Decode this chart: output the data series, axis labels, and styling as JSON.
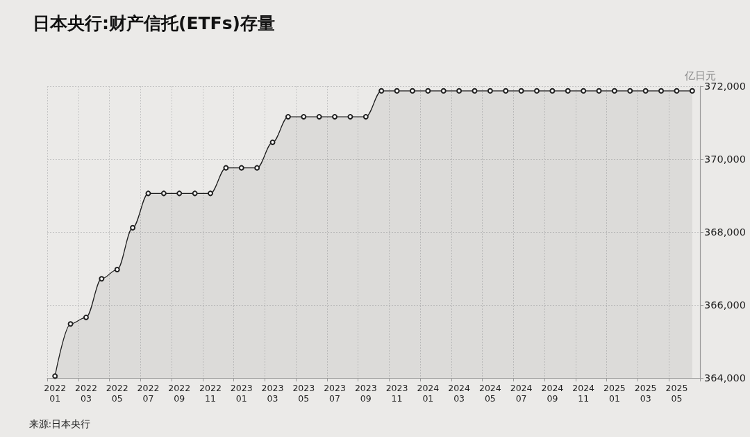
{
  "chart_data": {
    "type": "area",
    "title": "日本央行:财产信托(ETFs)存量",
    "ylabel": "亿日元",
    "annotations": [
      "来源:日本央行"
    ],
    "categories": [
      "2022\n01",
      null,
      "2022\n03",
      null,
      "2022\n05",
      null,
      "2022\n07",
      null,
      "2022\n09",
      null,
      "2022\n11",
      null,
      "2023\n01",
      null,
      "2023\n03",
      null,
      "2023\n05",
      null,
      "2023\n07",
      null,
      "2023\n09",
      null,
      "2023\n11",
      null,
      "2024\n01",
      null,
      "2024\n03",
      null,
      "2024\n05",
      null,
      "2024\n07",
      null,
      "2024\n09",
      null,
      "2024\n11",
      null,
      "2025\n01",
      null,
      "2025\n03",
      null,
      "2025\n05",
      null
    ],
    "values": [
      364050,
      365480,
      365660,
      366720,
      366970,
      368120,
      369060,
      369060,
      369060,
      369060,
      369060,
      369760,
      369760,
      369760,
      370460,
      371160,
      371160,
      371160,
      371160,
      371160,
      371160,
      371870,
      371870,
      371870,
      371870,
      371870,
      371870,
      371870,
      371870,
      371870,
      371870,
      371870,
      371870,
      371870,
      371870,
      371870,
      371870,
      371870,
      371870,
      371870,
      371870,
      371870
    ],
    "color": "#1e1e1e",
    "ylim": [
      364000,
      372000
    ],
    "yticks": [
      {
        "value": 364000,
        "label": "364,000"
      },
      {
        "value": 366000,
        "label": "366,000"
      },
      {
        "value": 368000,
        "label": "368,000"
      },
      {
        "value": 370000,
        "label": "370,000"
      },
      {
        "value": 372000,
        "label": "372,000"
      }
    ],
    "grid": true,
    "marker": "circle"
  }
}
